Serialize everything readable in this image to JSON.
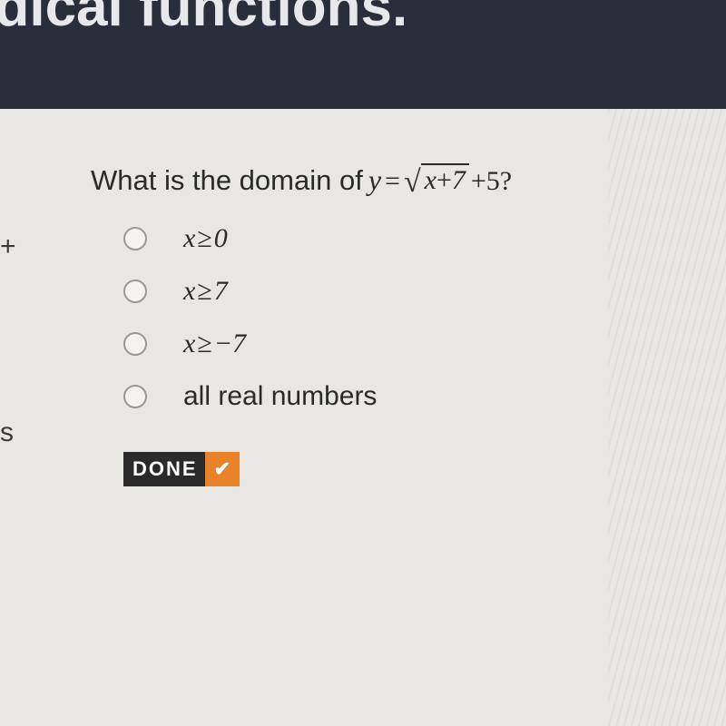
{
  "header": {
    "partial_title": "adical functions."
  },
  "sidebar": {
    "plus": "+",
    "s": "s"
  },
  "question": {
    "lead": "What is the domain of ",
    "y": "y",
    "equals": "=",
    "sqrt_symbol": "√",
    "radicand_x": "x",
    "radicand_plus": "+",
    "radicand_num": "7",
    "tail": " +5?"
  },
  "options": [
    {
      "x": "x",
      "ge": "≥",
      "val": "0",
      "plain": null
    },
    {
      "x": "x",
      "ge": "≥",
      "val": "7",
      "plain": null
    },
    {
      "x": "x",
      "ge": "≥",
      "val": "−7",
      "plain": null
    },
    {
      "x": null,
      "ge": null,
      "val": null,
      "plain": "all real numbers"
    }
  ],
  "button": {
    "label": "DONE",
    "check": "✔"
  },
  "colors": {
    "header_bg": "#2a2d3a",
    "content_bg": "#e8e7e3",
    "text": "#2a2a2a",
    "radio_border": "#9a9a94",
    "done_bg": "#2a2a2a",
    "done_accent": "#e8832a"
  }
}
